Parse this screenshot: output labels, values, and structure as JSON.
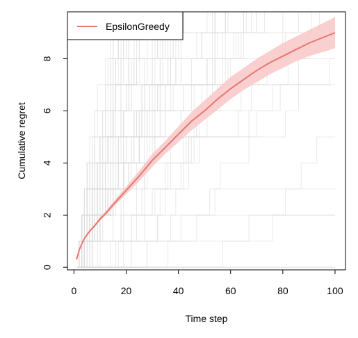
{
  "chart_data": {
    "type": "line",
    "xlabel": "Time step",
    "ylabel": "Cumulative regret",
    "xlim": [
      -2.5,
      104
    ],
    "ylim": [
      -0.1,
      9.8
    ],
    "xticks": [
      0,
      20,
      40,
      60,
      80,
      100
    ],
    "yticks": [
      0,
      2,
      4,
      6,
      8
    ],
    "legend": {
      "position": "top-left",
      "entries": [
        "EpsilonGreedy"
      ]
    },
    "colors": {
      "mean_line": "#E8756E",
      "ci_band": "#F9C7C7",
      "simulation_lines": "#D9D9D9"
    },
    "series": [
      {
        "name": "EpsilonGreedy",
        "x": [
          1,
          2,
          3,
          4,
          5,
          6,
          8,
          10,
          12,
          15,
          20,
          25,
          30,
          35,
          40,
          45,
          50,
          55,
          60,
          65,
          70,
          75,
          80,
          85,
          90,
          95,
          100
        ],
        "y": [
          0.3,
          0.65,
          0.9,
          1.1,
          1.25,
          1.38,
          1.6,
          1.85,
          2.05,
          2.4,
          2.95,
          3.5,
          4.1,
          4.6,
          5.1,
          5.6,
          6.0,
          6.45,
          6.85,
          7.2,
          7.55,
          7.85,
          8.1,
          8.35,
          8.6,
          8.8,
          9.0
        ],
        "lower": [
          0.25,
          0.6,
          0.85,
          1.05,
          1.2,
          1.33,
          1.55,
          1.78,
          1.98,
          2.3,
          2.8,
          3.3,
          3.85,
          4.35,
          4.8,
          5.25,
          5.65,
          6.05,
          6.45,
          6.8,
          7.1,
          7.4,
          7.65,
          7.9,
          8.1,
          8.25,
          8.4
        ],
        "upper": [
          0.35,
          0.7,
          0.95,
          1.15,
          1.3,
          1.43,
          1.65,
          1.92,
          2.12,
          2.5,
          3.1,
          3.7,
          4.35,
          4.85,
          5.4,
          5.95,
          6.4,
          6.85,
          7.3,
          7.65,
          8.0,
          8.3,
          8.6,
          8.85,
          9.1,
          9.35,
          9.6
        ]
      }
    ]
  }
}
